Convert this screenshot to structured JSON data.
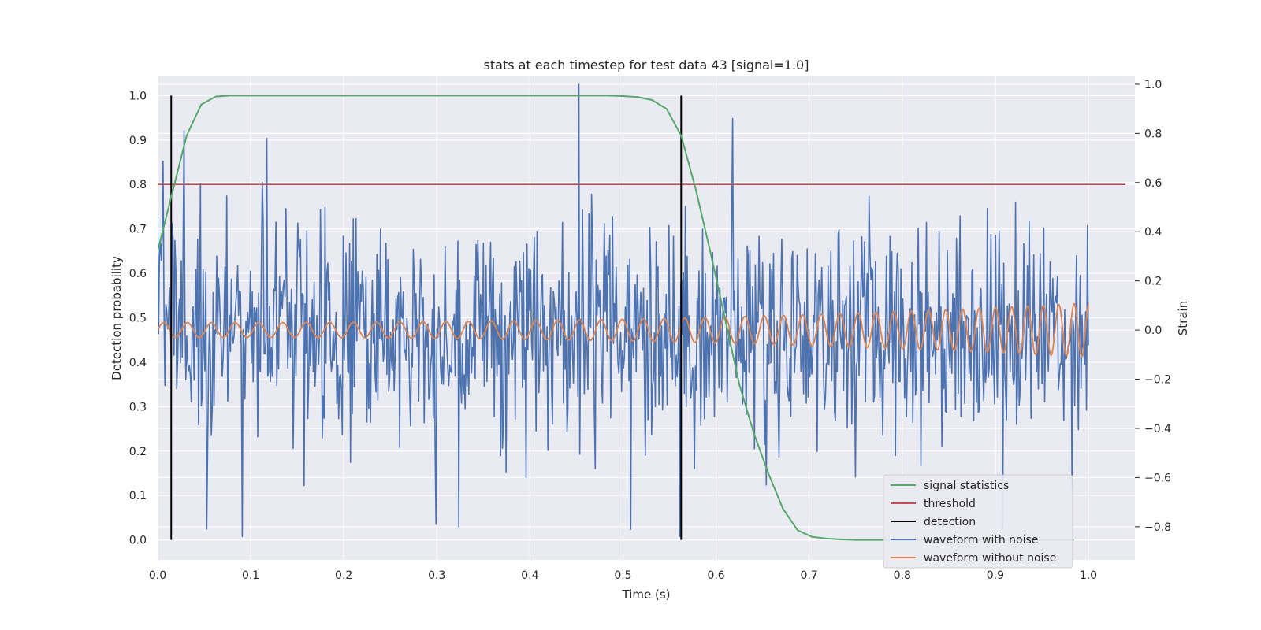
{
  "chart_data": {
    "type": "line",
    "title": "stats at each timestep for test data 43 [signal=1.0]",
    "xlabel": "Time (s)",
    "ylabel": "Detection probability",
    "y2label": "Strain",
    "xlim": [
      0.0,
      1.05
    ],
    "ylim": [
      -0.045,
      1.045
    ],
    "y2lim": [
      -0.935,
      1.035
    ],
    "xticks": [
      0.0,
      0.1,
      0.2,
      0.3,
      0.4,
      0.5,
      0.6,
      0.7,
      0.8,
      0.9,
      1.0
    ],
    "yticks": [
      0.0,
      0.1,
      0.2,
      0.3,
      0.4,
      0.5,
      0.6,
      0.7,
      0.8,
      0.9,
      1.0
    ],
    "y2ticks": [
      -0.8,
      -0.6,
      -0.4,
      -0.2,
      0.0,
      0.2,
      0.4,
      0.6,
      0.8,
      1.0
    ],
    "xtick_labels": [
      "0.0",
      "0.1",
      "0.2",
      "0.3",
      "0.4",
      "0.5",
      "0.6",
      "0.7",
      "0.8",
      "0.9",
      "1.0"
    ],
    "ytick_labels": [
      "0.0",
      "0.1",
      "0.2",
      "0.3",
      "0.4",
      "0.5",
      "0.6",
      "0.7",
      "0.8",
      "0.9",
      "1.0"
    ],
    "y2tick_labels": [
      "−0.8",
      "−0.6",
      "−0.4",
      "−0.2",
      "0.0",
      "0.2",
      "0.4",
      "0.6",
      "0.8",
      "1.0"
    ],
    "grid": true,
    "legend_position": "lower-right",
    "series": [
      {
        "name": "signal statistics",
        "axis": "left",
        "color": "#55a868",
        "x": [
          0.0,
          0.0156,
          0.0312,
          0.0469,
          0.0625,
          0.0781,
          0.0937,
          0.1094,
          0.125,
          0.1406,
          0.1562,
          0.1719,
          0.1875,
          0.2031,
          0.2187,
          0.2344,
          0.25,
          0.2656,
          0.2812,
          0.2969,
          0.3125,
          0.3281,
          0.3437,
          0.3594,
          0.375,
          0.3906,
          0.4062,
          0.4219,
          0.4375,
          0.4531,
          0.4687,
          0.4844,
          0.5,
          0.5156,
          0.5312,
          0.5469,
          0.5625,
          0.5781,
          0.5937,
          0.6094,
          0.625,
          0.6406,
          0.6562,
          0.6719,
          0.6875,
          0.7031,
          0.7187,
          0.7344,
          0.75,
          0.7656,
          0.7812,
          0.7969,
          0.8125,
          0.8281,
          0.8437,
          0.8594,
          0.875,
          0.8906,
          0.9062,
          0.9219,
          0.9375,
          0.9531,
          0.9687,
          0.9844
        ],
        "y": [
          0.65,
          0.78,
          0.91,
          0.98,
          0.998,
          1.0,
          1.0,
          1.0,
          1.0,
          1.0,
          1.0,
          1.0,
          1.0,
          1.0,
          1.0,
          1.0,
          1.0,
          1.0,
          1.0,
          1.0,
          1.0,
          1.0,
          1.0,
          1.0,
          1.0,
          1.0,
          1.0,
          1.0,
          1.0,
          1.0,
          1.0,
          1.0,
          0.999,
          0.997,
          0.99,
          0.97,
          0.91,
          0.79,
          0.65,
          0.5,
          0.35,
          0.24,
          0.15,
          0.07,
          0.022,
          0.007,
          0.003,
          0.001,
          0.0,
          0.0,
          0.0,
          0.0,
          0.0,
          0.0,
          0.0,
          0.0,
          0.0,
          0.0,
          0.0,
          0.0,
          0.0,
          0.0,
          0.0,
          0.0
        ]
      },
      {
        "name": "threshold",
        "axis": "left",
        "color": "#c44e52",
        "x": [
          0.0,
          1.04
        ],
        "y": [
          0.8,
          0.8
        ]
      },
      {
        "name": "detection",
        "axis": "left",
        "color": "#000000",
        "segments": [
          {
            "x": 0.0146,
            "y": [
              0.0,
              1.0
            ]
          },
          {
            "x": 0.5625,
            "y": [
              0.0,
              1.0
            ]
          }
        ]
      },
      {
        "name": "waveform with noise",
        "axis": "right",
        "color": "#4c72b0",
        "x_range": [
          0.0,
          1.0
        ],
        "n_points": 1024,
        "y_range": [
          -0.84,
          1.0
        ],
        "std": 0.22,
        "peaks": [
          {
            "x": 0.028,
            "y": 0.81
          },
          {
            "x": 0.117,
            "y": 0.78
          },
          {
            "x": 0.453,
            "y": 1.0
          },
          {
            "x": 0.618,
            "y": 0.86
          },
          {
            "x": 0.654,
            "y": -0.63
          },
          {
            "x": 0.0913,
            "y": -0.84
          },
          {
            "x": 0.053,
            "y": -0.81
          },
          {
            "x": 0.324,
            "y": -0.8
          },
          {
            "x": 0.299,
            "y": -0.79
          },
          {
            "x": 0.561,
            "y": -0.84
          },
          {
            "x": 0.508,
            "y": -0.81
          },
          {
            "x": 0.908,
            "y": -0.81
          }
        ]
      },
      {
        "name": "waveform without noise",
        "axis": "right",
        "color": "#dd8452",
        "x_range": [
          0.0,
          1.0
        ],
        "amplitude_start": 0.03,
        "amplitude_end": 0.11,
        "frequency_start_hz": 39,
        "frequency_end_hz": 62
      }
    ]
  }
}
